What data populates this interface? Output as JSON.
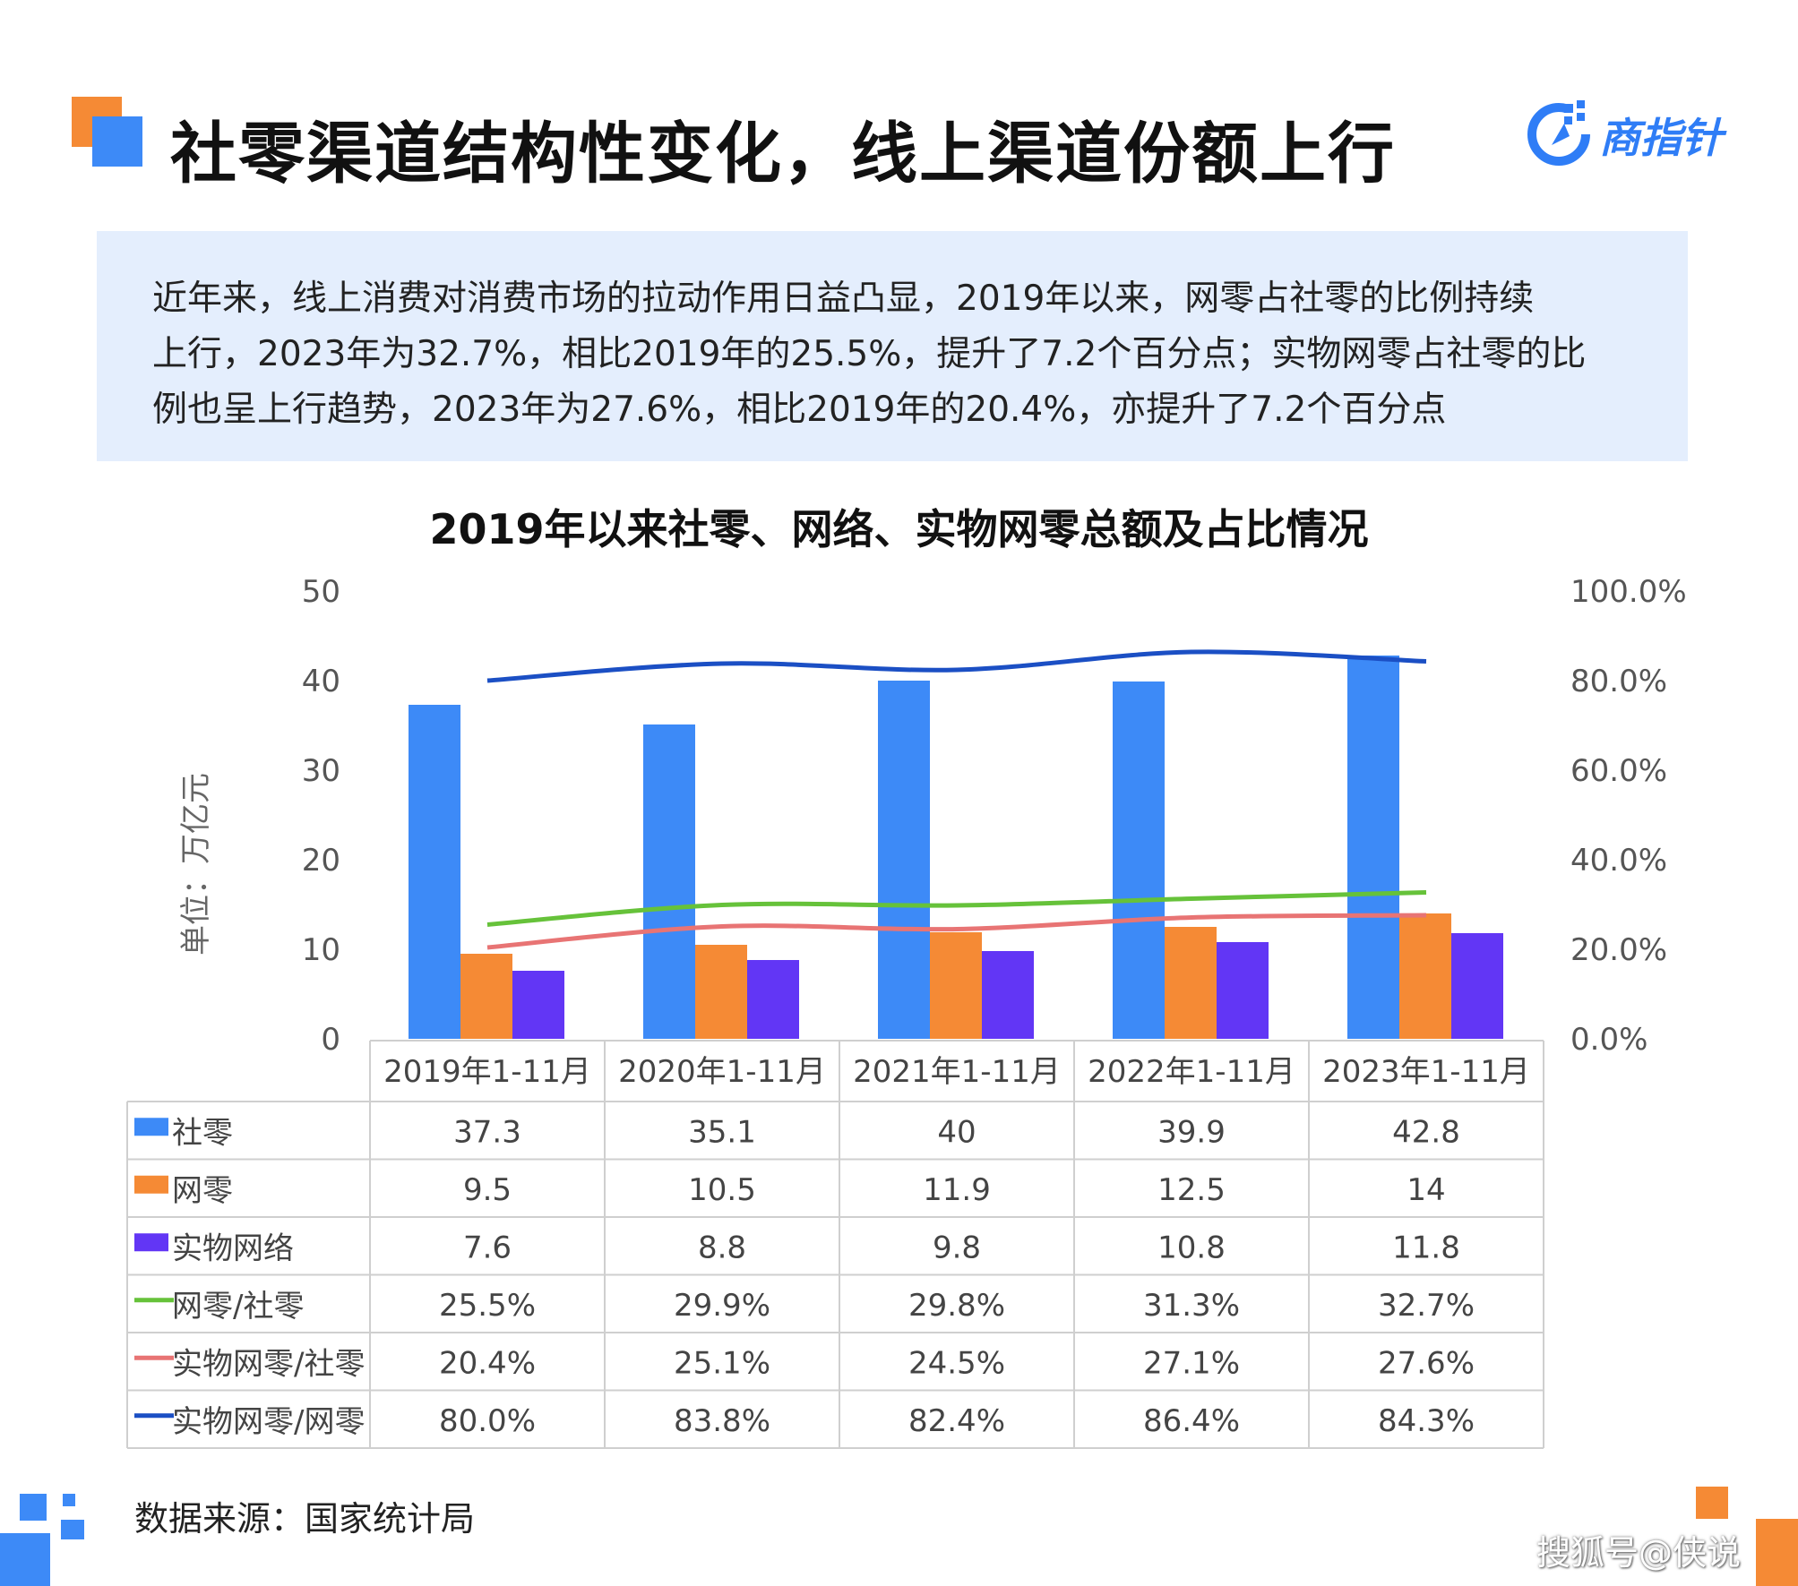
{
  "header": {
    "title": "社零渠道结构性变化，线上渠道份额上行",
    "logo_text": "商指针"
  },
  "summary": {
    "lines": [
      "近年来，线上消费对消费市场的拉动作用日益凸显，2019年以来，网零占社零的比例持续",
      "上行，2023年为32.7%，相比2019年的25.5%，提升了7.2个百分点；实物网零占社零的比",
      "例也呈上行趋势，2023年为27.6%，相比2019年的20.4%，亦提升了7.2个百分点"
    ]
  },
  "chart_data": {
    "type": "bar",
    "title": "2019年以来社零、网络、实物网零总额及占比情况",
    "ylabel": "单位：万亿元",
    "ylim": [
      0,
      50
    ],
    "y2lim": [
      0,
      100
    ],
    "y_ticks": [
      "0",
      "10",
      "20",
      "30",
      "40",
      "50"
    ],
    "y2_ticks": [
      "0.0%",
      "20.0%",
      "40.0%",
      "60.0%",
      "80.0%",
      "100.0%"
    ],
    "categories": [
      "2019年1-11月",
      "2020年1-11月",
      "2021年1-11月",
      "2022年1-11月",
      "2023年1-11月"
    ],
    "series": [
      {
        "name": "社零",
        "kind": "bar",
        "axis": "left",
        "color": "#3d8af7",
        "values": [
          37.3,
          35.1,
          40,
          39.9,
          42.8
        ],
        "labels": [
          "37.3",
          "35.1",
          "40",
          "39.9",
          "42.8"
        ]
      },
      {
        "name": "网零",
        "kind": "bar",
        "axis": "left",
        "color": "#f58a35",
        "values": [
          9.5,
          10.5,
          11.9,
          12.5,
          14
        ],
        "labels": [
          "9.5",
          "10.5",
          "11.9",
          "12.5",
          "14"
        ]
      },
      {
        "name": "实物网络",
        "kind": "bar",
        "axis": "left",
        "color": "#6236f5",
        "values": [
          7.6,
          8.8,
          9.8,
          10.8,
          11.8
        ],
        "labels": [
          "7.6",
          "8.8",
          "9.8",
          "10.8",
          "11.8"
        ]
      },
      {
        "name": "网零/社零",
        "kind": "line",
        "axis": "right",
        "color": "#66c23a",
        "values": [
          25.5,
          29.9,
          29.8,
          31.3,
          32.7
        ],
        "labels": [
          "25.5%",
          "29.9%",
          "29.8%",
          "31.3%",
          "32.7%"
        ]
      },
      {
        "name": "实物网零/社零",
        "kind": "line",
        "axis": "right",
        "color": "#e87474",
        "values": [
          20.4,
          25.1,
          24.5,
          27.1,
          27.6
        ],
        "labels": [
          "20.4%",
          "25.1%",
          "24.5%",
          "27.1%",
          "27.6%"
        ]
      },
      {
        "name": "实物网零/网零",
        "kind": "line",
        "axis": "right",
        "color": "#1b4fc4",
        "values": [
          80.0,
          83.8,
          82.4,
          86.4,
          84.3
        ],
        "labels": [
          "80.0%",
          "83.8%",
          "82.4%",
          "86.4%",
          "84.3%"
        ]
      }
    ],
    "grid": false,
    "legend": "data-table"
  },
  "footer": {
    "source": "数据来源：国家统计局",
    "watermark": "搜狐号@侠说"
  },
  "colors": {
    "accent_blue": "#2f7df6",
    "accent_orange": "#f58a35",
    "summary_bg": "#e4eefd"
  }
}
